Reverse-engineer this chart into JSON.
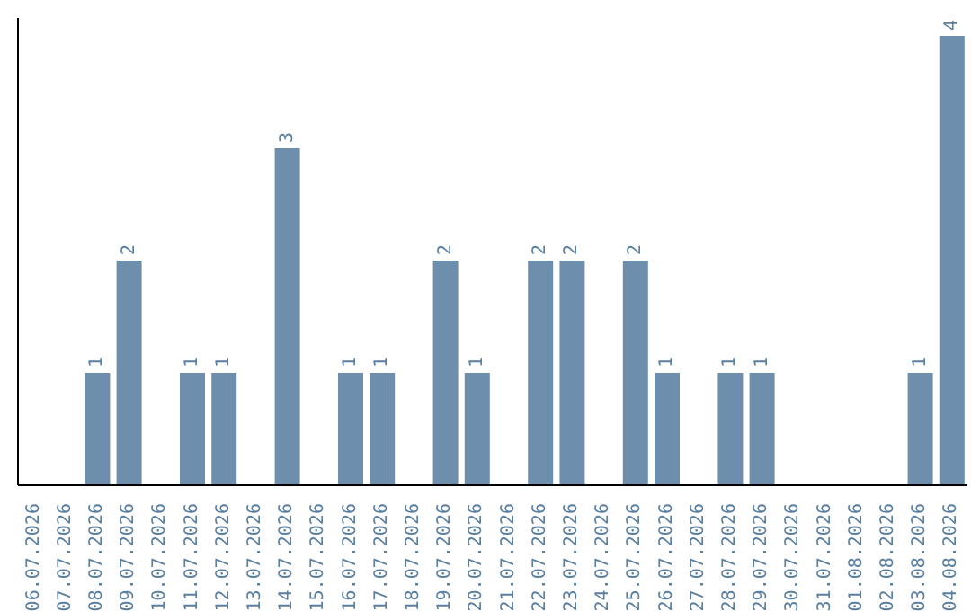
{
  "chart_data": {
    "type": "bar",
    "categories": [
      "06.07.2026",
      "07.07.2026",
      "08.07.2026",
      "09.07.2026",
      "10.07.2026",
      "11.07.2026",
      "12.07.2026",
      "13.07.2026",
      "14.07.2026",
      "15.07.2026",
      "16.07.2026",
      "17.07.2026",
      "18.07.2026",
      "19.07.2026",
      "20.07.2026",
      "21.07.2026",
      "22.07.2026",
      "23.07.2026",
      "24.07.2026",
      "25.07.2026",
      "26.07.2026",
      "27.07.2026",
      "28.07.2026",
      "29.07.2026",
      "30.07.2026",
      "31.07.2026",
      "01.08.2026",
      "02.08.2026",
      "03.08.2026",
      "04.08.2026"
    ],
    "values": [
      0,
      0,
      1,
      2,
      0,
      1,
      1,
      0,
      3,
      0,
      1,
      1,
      0,
      2,
      1,
      0,
      2,
      2,
      0,
      2,
      1,
      0,
      1,
      1,
      0,
      0,
      0,
      0,
      1,
      4
    ],
    "value_labels": [
      null,
      null,
      "1",
      "2",
      null,
      "1",
      "1",
      null,
      "3",
      null,
      "1",
      "1",
      null,
      "2",
      "1",
      null,
      "2",
      "2",
      null,
      "2",
      "1",
      null,
      "1",
      "1",
      null,
      null,
      null,
      null,
      "1",
      "4"
    ],
    "color": "#6d8fad",
    "grid": false,
    "legend": false,
    "tick_labels": "x"
  }
}
